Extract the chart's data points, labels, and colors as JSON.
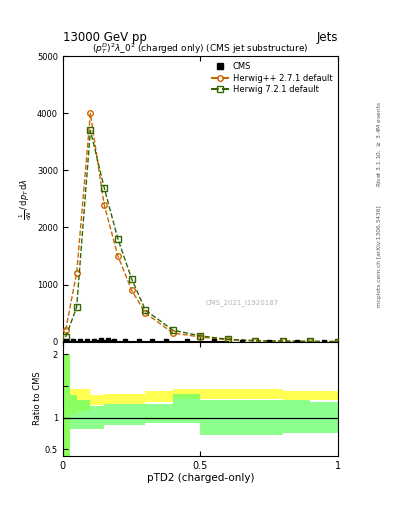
{
  "title_top": "13000 GeV pp",
  "title_right": "Jets",
  "subplot_title": "$(p_T^D)^2\\lambda\\_0^2$ (charged only) (CMS jet substructure)",
  "watermark": "CMS_2021_I1920187",
  "right_label_top": "Rivet 3.1.10, $\\geq$ 3.4M events",
  "right_label_bottom": "mcplots.cern.ch [arXiv:1306.3436]",
  "ylabel_main": "1 / mathrm{d}N / mathrm{d}p_T mathrm{d}lambda",
  "ylabel_ratio": "Ratio to CMS",
  "xlabel": "pTD2 (charged-only)",
  "xlim": [
    0.0,
    1.0
  ],
  "ylim_main": [
    0,
    5000
  ],
  "ylim_ratio": [
    0.4,
    2.2
  ],
  "herwig_pp_x": [
    0.01,
    0.05,
    0.1,
    0.15,
    0.2,
    0.25,
    0.3,
    0.4,
    0.5,
    0.6,
    0.7,
    0.8,
    0.9,
    1.0
  ],
  "herwig_pp_y": [
    200,
    1200,
    4000,
    2400,
    1500,
    900,
    500,
    150,
    80,
    30,
    15,
    8,
    3,
    1
  ],
  "herwig7_x": [
    0.01,
    0.05,
    0.1,
    0.15,
    0.2,
    0.25,
    0.3,
    0.4,
    0.5,
    0.6,
    0.7,
    0.8,
    0.9,
    1.0
  ],
  "herwig7_y": [
    80,
    600,
    3700,
    2700,
    1800,
    1100,
    550,
    200,
    100,
    40,
    15,
    8,
    3,
    1
  ],
  "herwig_pp_color": "#cc6600",
  "herwig7_color": "#336600",
  "cms_color": "#000000",
  "ratio_edges": [
    0.0,
    0.025,
    0.05,
    0.1,
    0.15,
    0.2,
    0.25,
    0.3,
    0.4,
    0.5,
    0.6,
    0.7,
    0.8,
    0.9,
    1.0
  ],
  "hpp_ratio_lo": [
    0.4,
    1.05,
    1.1,
    1.2,
    1.22,
    1.22,
    1.22,
    1.25,
    1.3,
    1.3,
    1.3,
    1.3,
    1.28,
    1.28
  ],
  "hpp_ratio_hi": [
    2.0,
    1.45,
    1.45,
    1.35,
    1.38,
    1.38,
    1.38,
    1.42,
    1.45,
    1.45,
    1.45,
    1.45,
    1.42,
    1.42
  ],
  "h7_ratio_lo": [
    0.35,
    0.82,
    0.82,
    0.82,
    0.88,
    0.88,
    0.88,
    0.92,
    0.92,
    0.72,
    0.72,
    0.72,
    0.75,
    0.75
  ],
  "h7_ratio_hi": [
    2.0,
    1.35,
    1.28,
    1.18,
    1.22,
    1.22,
    1.22,
    1.22,
    1.38,
    1.28,
    1.28,
    1.28,
    1.28,
    1.25
  ]
}
